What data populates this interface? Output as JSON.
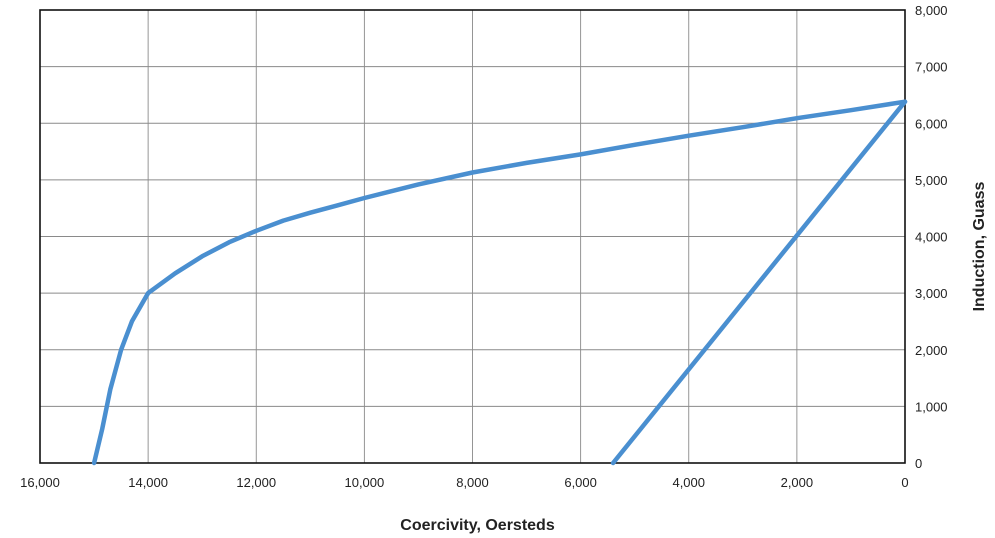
{
  "chart_data": {
    "type": "line",
    "xlabel": "Coercivity, Oersteds",
    "ylabel": "Induction, Guass",
    "x_reversed": true,
    "y_axis_side": "right",
    "xlim": [
      16000,
      0
    ],
    "ylim": [
      0,
      8000
    ],
    "xticks": [
      16000,
      14000,
      12000,
      10000,
      8000,
      6000,
      4000,
      2000,
      0
    ],
    "yticks": [
      0,
      1000,
      2000,
      3000,
      4000,
      5000,
      6000,
      7000,
      8000
    ],
    "xtick_labels": [
      "16,000",
      "14,000",
      "12,000",
      "10,000",
      "8,000",
      "6,000",
      "4,000",
      "2,000",
      "0"
    ],
    "ytick_labels": [
      "0",
      "1,000",
      "2,000",
      "3,000",
      "4,000",
      "5,000",
      "6,000",
      "7,000",
      "8,000"
    ],
    "grid": true,
    "line_color": "#4a8fd0",
    "series": [
      {
        "x": [
          15000,
          14850,
          14700,
          14500,
          14300,
          14000,
          13500,
          13000,
          12500,
          12000,
          11500,
          11000,
          10500,
          10000,
          9000,
          8000,
          7000,
          6000,
          5000,
          4000,
          3000,
          2000,
          1000,
          0
        ],
        "y": [
          0,
          600,
          1300,
          2000,
          2500,
          3000,
          3350,
          3650,
          3900,
          4100,
          4280,
          4420,
          4550,
          4680,
          4920,
          5130,
          5300,
          5450,
          5620,
          5780,
          5930,
          6090,
          6230,
          6380
        ]
      },
      {
        "x": [
          5400,
          0
        ],
        "y": [
          0,
          6380
        ]
      }
    ]
  }
}
